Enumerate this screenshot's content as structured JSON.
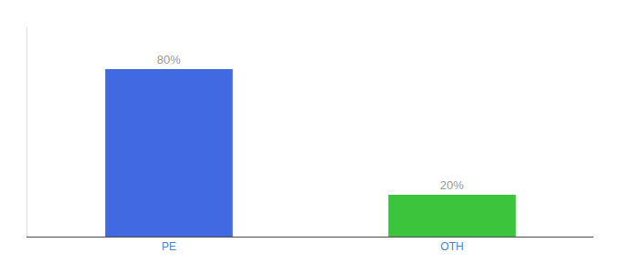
{
  "chart_data": {
    "type": "bar",
    "categories": [
      "PE",
      "OTH"
    ],
    "values": [
      80,
      20
    ],
    "value_labels": [
      "80%",
      "20%"
    ],
    "data_labels": true,
    "colors": [
      "#4169E1",
      "#3DC43D"
    ],
    "ylim": [
      0,
      100
    ],
    "grid": false,
    "tick_labels": "x"
  }
}
